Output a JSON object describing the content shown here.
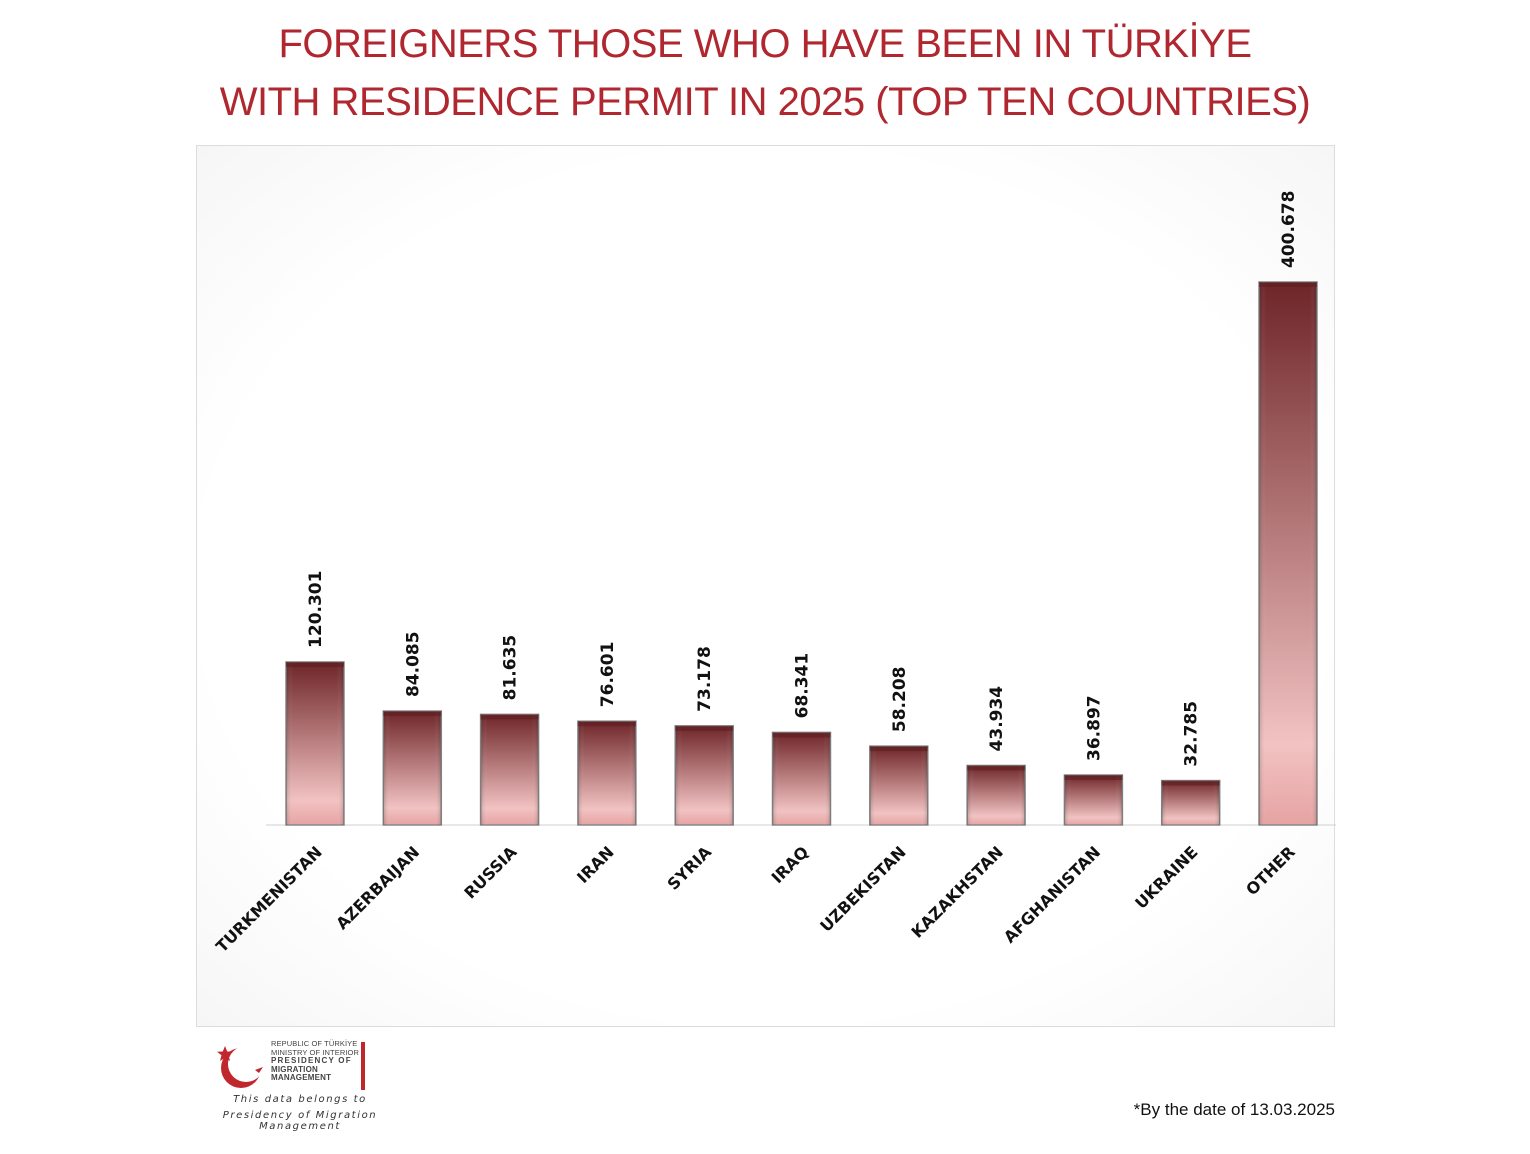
{
  "title": {
    "line1": "FOREIGNERS THOSE WHO HAVE BEEN IN TÜRKİYE",
    "line2": "WITH RESIDENCE PERMIT IN 2025 (TOP TEN COUNTRIES)"
  },
  "chart_data": {
    "type": "bar",
    "categories": [
      "TURKMENISTAN",
      "AZERBAIJAN",
      "RUSSIA",
      "IRAN",
      "SYRIA",
      "IRAQ",
      "UZBEKISTAN",
      "KAZAKHSTAN",
      "AFGHANISTAN",
      "UKRAINE",
      "OTHER"
    ],
    "values": [
      120301,
      84085,
      81635,
      76601,
      73178,
      68341,
      58208,
      43934,
      36897,
      32785,
      400678
    ],
    "value_labels": [
      "120.301",
      "84.085",
      "81.635",
      "76.601",
      "73.178",
      "68.341",
      "58.208",
      "43.934",
      "36.897",
      "32.785",
      "400.678"
    ],
    "grid": false,
    "legend": "none",
    "colors": {
      "bar_dark": "#6e2528",
      "bar_light": "#f2c2c2",
      "edge": "#888888"
    }
  },
  "logo": {
    "line1": "REPUBLIC OF TÜRKİYE",
    "line2": "MINISTRY OF INTERIOR",
    "line3": "PRESIDENCY OF",
    "line4": "MIGRATION MANAGEMENT"
  },
  "owner": {
    "line1": "This data belongs to",
    "line2": "Presidency of Migration Management"
  },
  "footnote": "*By the date of 13.03.2025"
}
